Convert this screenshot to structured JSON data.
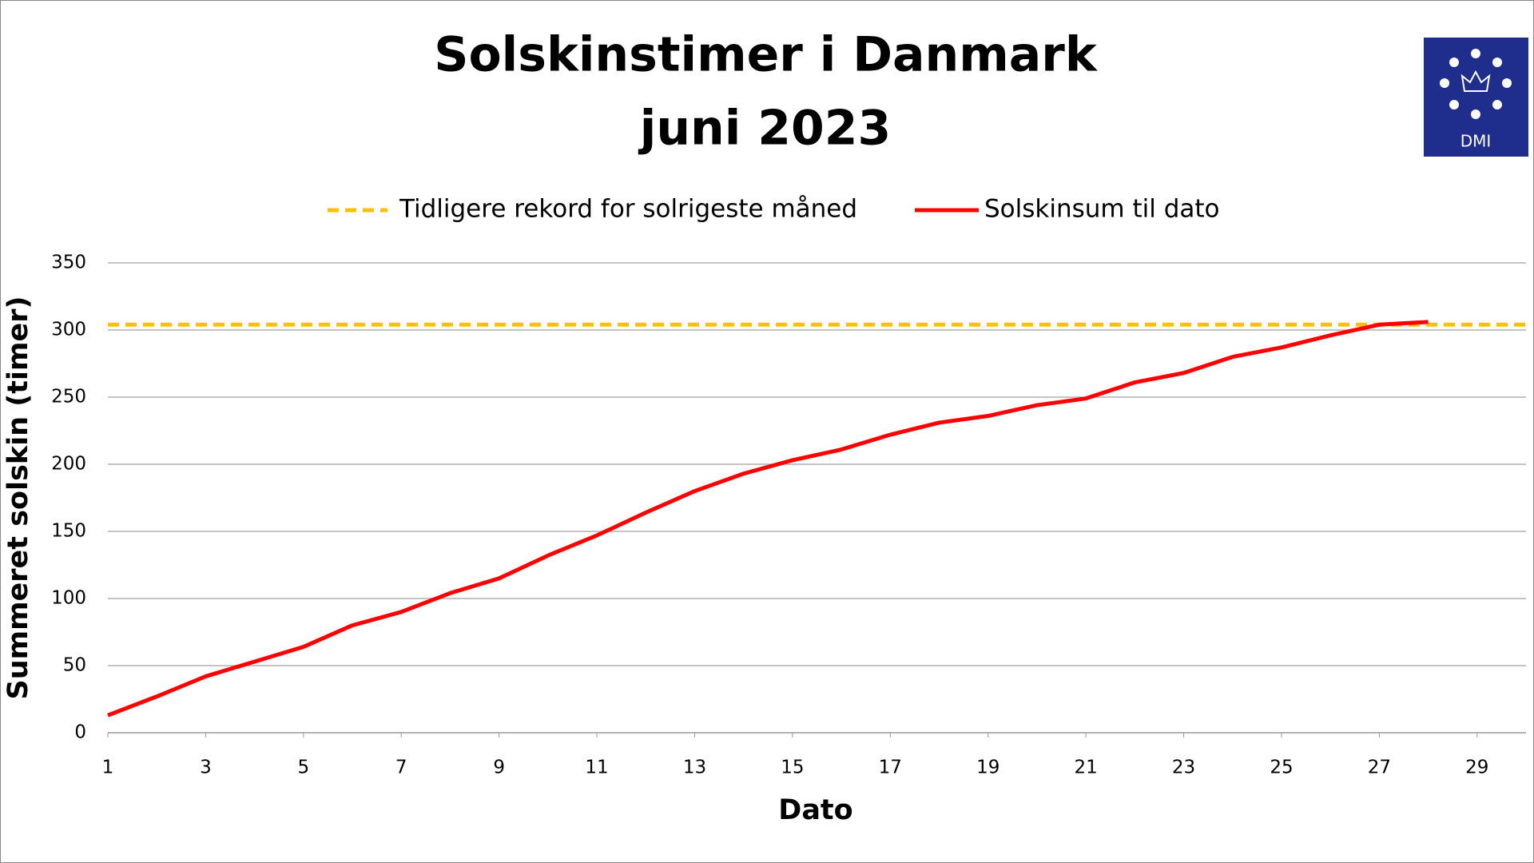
{
  "chart_data": {
    "type": "line",
    "title": "Solskinstimer i Danmark",
    "subtitle": "juni 2023",
    "logo_text": "DMI",
    "x_label": "Dato",
    "y_label": "Summeret solskin (timer)",
    "x": [
      1,
      2,
      3,
      4,
      5,
      6,
      7,
      8,
      9,
      10,
      11,
      12,
      13,
      14,
      15,
      16,
      17,
      18,
      19,
      20,
      21,
      22,
      23,
      24,
      25,
      26,
      27,
      28
    ],
    "series": [
      {
        "name": "Solskinsum til dato",
        "color": "#ff0000",
        "values": [
          13,
          27,
          42,
          53,
          64,
          80,
          90,
          104,
          115,
          132,
          147,
          164,
          180,
          193,
          203,
          211,
          222,
          231,
          236,
          244,
          249,
          261,
          268,
          280,
          287,
          296,
          304,
          306
        ]
      }
    ],
    "reference_line": {
      "name": "Tidligere rekord for solrigeste måned",
      "color": "#ffc000",
      "value": 304
    },
    "xlim": [
      1,
      30
    ],
    "xticks": [
      1,
      3,
      5,
      7,
      9,
      11,
      13,
      15,
      17,
      19,
      21,
      23,
      25,
      27,
      29
    ],
    "ylim": [
      0,
      350
    ],
    "yticks": [
      0,
      50,
      100,
      150,
      200,
      250,
      300,
      350
    ],
    "grid": true
  }
}
